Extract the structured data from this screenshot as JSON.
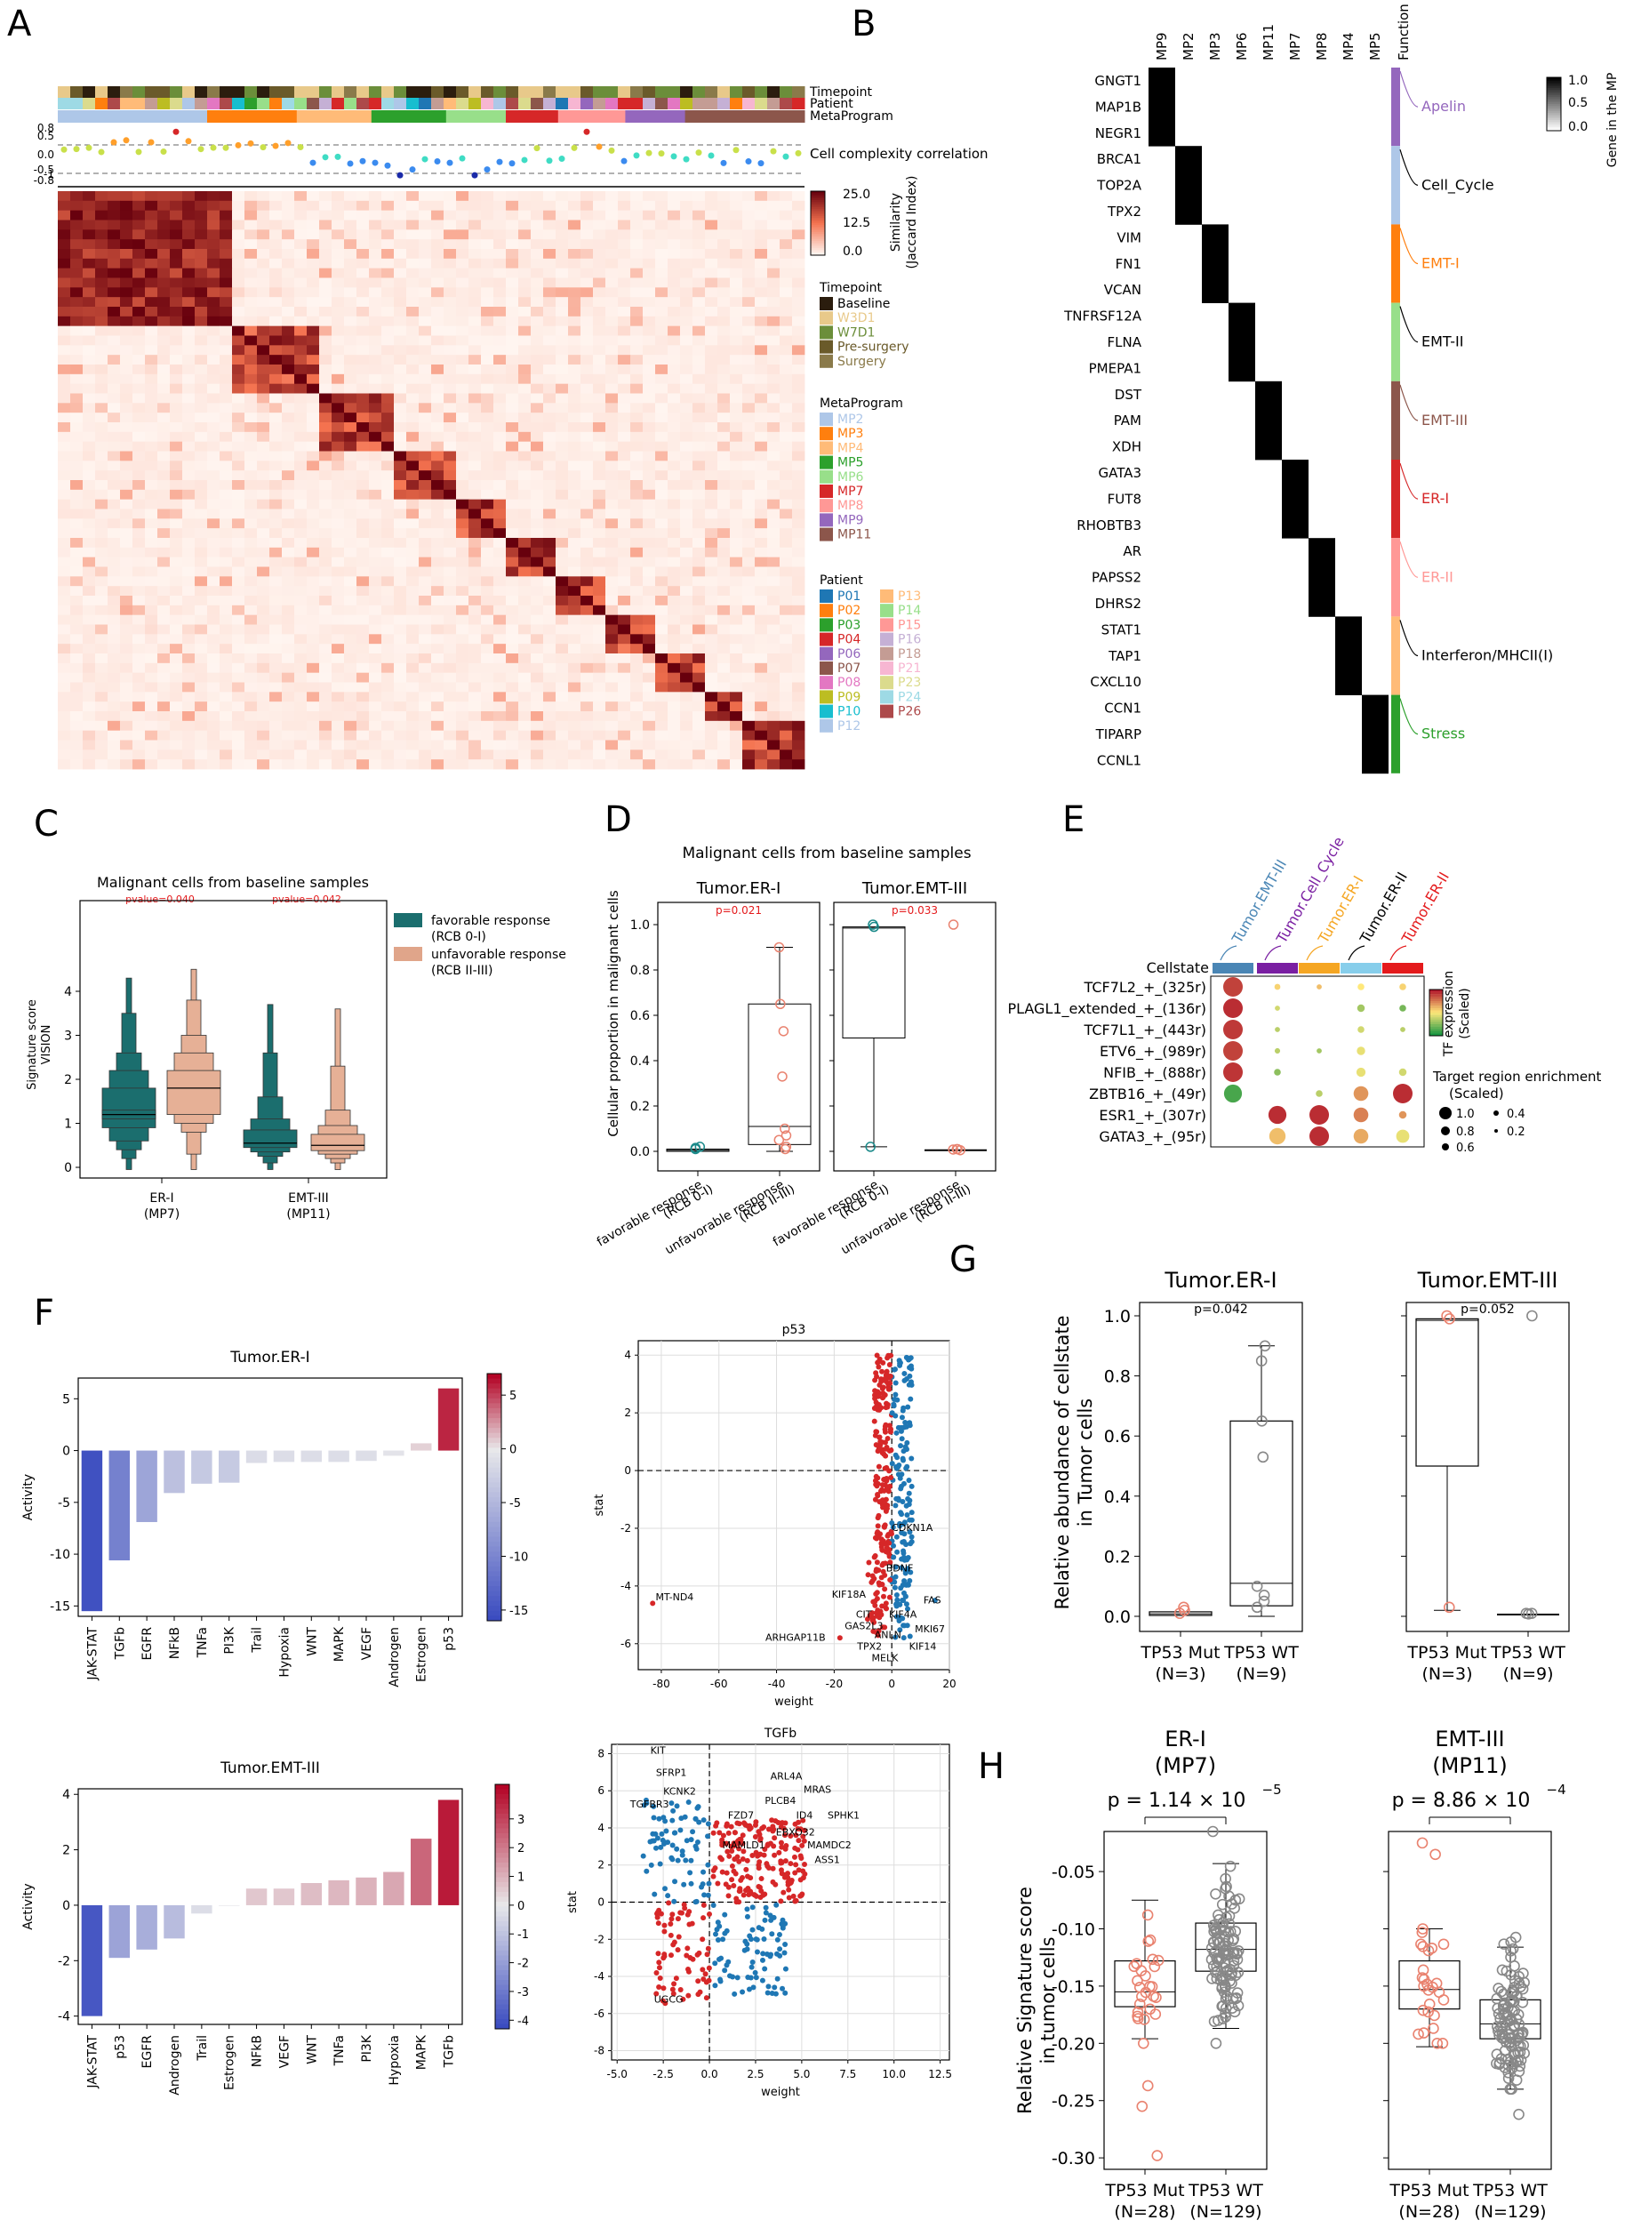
{
  "panel_letters": [
    "A",
    "B",
    "C",
    "D",
    "E",
    "F",
    "G",
    "H"
  ],
  "A": {
    "track_labels": [
      "Timepoint",
      "Patient",
      "MetaProgram"
    ],
    "corr_label": "Cell complexity correlation",
    "corr_ticks": [
      "0.8",
      "0.5",
      "0.0",
      "-0.5",
      "-1",
      "-0.8"
    ],
    "colorbar": {
      "max": "25.0",
      "mid": "12.5",
      "min": "0.0",
      "label": "Similarity (Jaccard Index)"
    },
    "legend_timepoint": {
      "title": "Timepoint",
      "items": [
        {
          "label": "Baseline",
          "color": "#2b1d0e"
        },
        {
          "label": "W3D1",
          "color": "#e8c98a"
        },
        {
          "label": "W7D1",
          "color": "#6b8e3a"
        },
        {
          "label": "Pre-surgery",
          "color": "#6a5a2a"
        },
        {
          "label": "Surgery",
          "color": "#8a7a4a"
        }
      ]
    },
    "legend_mp": {
      "title": "MetaProgram",
      "items": [
        {
          "label": "MP2",
          "color": "#aec7e8"
        },
        {
          "label": "MP3",
          "color": "#ff7f0e"
        },
        {
          "label": "MP4",
          "color": "#ffbb78"
        },
        {
          "label": "MP5",
          "color": "#2ca02c"
        },
        {
          "label": "MP6",
          "color": "#98df8a"
        },
        {
          "label": "MP7",
          "color": "#d62728"
        },
        {
          "label": "MP8",
          "color": "#ff9896"
        },
        {
          "label": "MP9",
          "color": "#9467bd"
        },
        {
          "label": "MP11",
          "color": "#8c564b"
        }
      ]
    },
    "legend_patient": {
      "title": "Patient",
      "col1": [
        {
          "label": "P01",
          "color": "#1f77b4"
        },
        {
          "label": "P02",
          "color": "#ff7f0e"
        },
        {
          "label": "P03",
          "color": "#2ca02c"
        },
        {
          "label": "P04",
          "color": "#d62728"
        },
        {
          "label": "P06",
          "color": "#9467bd"
        },
        {
          "label": "P07",
          "color": "#8c564b"
        },
        {
          "label": "P08",
          "color": "#e377c2"
        },
        {
          "label": "P09",
          "color": "#bcbd22"
        },
        {
          "label": "P10",
          "color": "#17becf"
        },
        {
          "label": "P12",
          "color": "#aec7e8"
        }
      ],
      "col2": [
        {
          "label": "P13",
          "color": "#ffbb78"
        },
        {
          "label": "P14",
          "color": "#98df8a"
        },
        {
          "label": "P15",
          "color": "#ff9896"
        },
        {
          "label": "P16",
          "color": "#c5b0d5"
        },
        {
          "label": "P18",
          "color": "#c49c94"
        },
        {
          "label": "P21",
          "color": "#f7b6d2"
        },
        {
          "label": "P23",
          "color": "#dbdb8d"
        },
        {
          "label": "P24",
          "color": "#9edae5"
        },
        {
          "label": "P26",
          "color": "#ad494a"
        }
      ]
    }
  },
  "B": {
    "columns": [
      "MP9",
      "MP2",
      "MP3",
      "MP6",
      "MP11",
      "MP7",
      "MP8",
      "MP4",
      "MP5"
    ],
    "function_header": "Function",
    "genes": [
      "GNGT1",
      "MAP1B",
      "NEGR1",
      "BRCA1",
      "TOP2A",
      "TPX2",
      "VIM",
      "FN1",
      "VCAN",
      "TNFRSF12A",
      "FLNA",
      "PMEPA1",
      "DST",
      "PAM",
      "XDH",
      "GATA3",
      "FUT8",
      "RHOBTB3",
      "AR",
      "PAPSS2",
      "DHRS2",
      "STAT1",
      "TAP1",
      "CXCL10",
      "CCN1",
      "TIPARP",
      "CCNL1"
    ],
    "functions": [
      {
        "label": "Apelin",
        "color": "#9467bd"
      },
      {
        "label": "Cell_Cycle",
        "color": "#aec7e8"
      },
      {
        "label": "EMT-I",
        "color": "#ff7f0e"
      },
      {
        "label": "EMT-II",
        "color": "#98df8a"
      },
      {
        "label": "EMT-III",
        "color": "#8c564b"
      },
      {
        "label": "ER-I",
        "color": "#d62728"
      },
      {
        "label": "ER-II",
        "color": "#ff9896"
      },
      {
        "label": "Interferon/MHCII(I)",
        "color": "#ffbb78"
      },
      {
        "label": "Stress",
        "color": "#2ca02c"
      }
    ],
    "colorbar": {
      "max": "1.0",
      "mid": "0.5",
      "min": "0.0",
      "label": "Gene in the MP"
    }
  },
  "C": {
    "title": "Malignant cells from baseline samples",
    "ylabel": "Signature score VISION",
    "pvalues": [
      "pvalue=0.040",
      "pvalue=0.042"
    ],
    "groups": [
      "ER-I\n(MP7)",
      "EMT-III\n(MP11)"
    ],
    "legend": [
      {
        "label": "favorable response",
        "sub": "(RCB 0-I)",
        "color": "#1b6e6e"
      },
      {
        "label": "unfavorable response",
        "sub": "(RCB II-III)",
        "color": "#e0a58a"
      }
    ],
    "yticks": [
      "0",
      "1",
      "2",
      "3",
      "4"
    ]
  },
  "D": {
    "title": "Malignant cells from baseline samples",
    "ylabel": "Cellular proportion in malignant cells",
    "panels": [
      {
        "title": "Tumor.ER-I",
        "p": "p=0.021"
      },
      {
        "title": "Tumor.EMT-III",
        "p": "p=0.033"
      }
    ],
    "xlabels": [
      "favorable response\n(RCB 0-I)",
      "unfavorable response\n(RCB II-III)"
    ],
    "yticks": [
      "0.0",
      "0.2",
      "0.4",
      "0.6",
      "0.8",
      "1.0"
    ]
  },
  "E": {
    "cellstate_label": "Cellstate",
    "cellstates": [
      {
        "label": "Tumor.EMT-III",
        "color": "#4a86b5"
      },
      {
        "label": "Tumor.Cell_Cycle",
        "color": "#7a1fa2"
      },
      {
        "label": "Tumor.ER-I",
        "color": "#f5a623"
      },
      {
        "label": "Tumor.ER-II",
        "color": "#000000"
      },
      {
        "label": "Tumor.ER-II",
        "color": "#e41a1c"
      }
    ],
    "cellstate_bar_colors": [
      "#4a86b5",
      "#7a1fa2",
      "#f5a623",
      "#87ceeb",
      "#e41a1c"
    ],
    "rows": [
      "TCF7L2_+_(325r)",
      "PLAGL1_extended_+_(136r)",
      "TCF7L1_+_(443r)",
      "ETV6_+_(989r)",
      "NFIB_+_(888r)",
      "ZBTB16_+_(49r)",
      "ESR1_+_(307r)",
      "GATA3_+_(95r)"
    ],
    "cb_label": "TF expression (Scaled)",
    "size_legend_title": "Target region enrichment (Scaled)",
    "size_legend": [
      "1.0",
      "0.8",
      "0.6",
      "0.4",
      "0.2"
    ]
  },
  "F": {
    "bar1": {
      "title": "Tumor.ER-I",
      "ylabel": "Activity",
      "categories": [
        "JAK-STAT",
        "TGFb",
        "EGFR",
        "NFkB",
        "TNFa",
        "PI3K",
        "Trail",
        "Hypoxia",
        "WNT",
        "MAPK",
        "VEGF",
        "Androgen",
        "Estrogen",
        "p53"
      ],
      "values": [
        -15.5,
        -10.6,
        -6.9,
        -4.1,
        -3.2,
        -3.1,
        -1.2,
        -1.1,
        -1.1,
        -1.1,
        -1.0,
        -0.5,
        0.7,
        6.0
      ],
      "yticks": [
        "5",
        "0",
        "-5",
        "-10",
        "-15"
      ],
      "cbticks": [
        "5",
        "0",
        "-5",
        "-10",
        "-15"
      ]
    },
    "bar2": {
      "title": "Tumor.EMT-III",
      "ylabel": "Activity",
      "categories": [
        "JAK-STAT",
        "p53",
        "EGFR",
        "Androgen",
        "Trail",
        "Estrogen",
        "NFkB",
        "VEGF",
        "WNT",
        "TNFa",
        "PI3K",
        "Hypoxia",
        "MAPK",
        "TGFb"
      ],
      "values": [
        -4.0,
        -1.9,
        -1.6,
        -1.2,
        -0.3,
        0.0,
        0.6,
        0.6,
        0.8,
        0.9,
        1.0,
        1.2,
        2.4,
        3.8
      ],
      "yticks": [
        "4",
        "2",
        "0",
        "-2",
        "-4"
      ],
      "cbticks": [
        "3",
        "2",
        "1",
        "0",
        "-1",
        "-2",
        "-3",
        "-4"
      ]
    },
    "scatter1": {
      "title": "p53",
      "xlabel": "weight",
      "ylabel": "stat",
      "xticks": [
        "-80",
        "-60",
        "-40",
        "-20",
        "0",
        "20"
      ],
      "yticks": [
        "4",
        "2",
        "0",
        "-2",
        "-4",
        "-6"
      ],
      "labels": [
        "MT-ND4",
        "CDKN1A",
        "FAS",
        "MKI67",
        "KIF14",
        "MELK",
        "TPX2",
        "ARHGAP11B",
        "GAS2L3",
        "CIT",
        "KIF18A",
        "KIF4A",
        "ANLN",
        "BDNF"
      ]
    },
    "scatter2": {
      "title": "TGFb",
      "xlabel": "weight",
      "ylabel": "stat",
      "xticks": [
        "-5.0",
        "-2.5",
        "0.0",
        "2.5",
        "5.0",
        "7.5",
        "10.0",
        "12.5"
      ],
      "yticks": [
        "8",
        "6",
        "4",
        "2",
        "0",
        "-2",
        "-4",
        "-6",
        "-8"
      ],
      "labels": [
        "KIT",
        "SFRP1",
        "KCNK2",
        "TGFBR3",
        "ARL4A",
        "MRAS",
        "PLCB4",
        "ID4",
        "SPHK1",
        "FZD7",
        "EBXO32",
        "MAMLD1",
        "MAMDC2",
        "ASS1",
        "UGCG"
      ]
    }
  },
  "G": {
    "ylabel": "Relative abundance of cellstate in Tumor cells",
    "panels": [
      {
        "title": "Tumor.ER-I",
        "p": "p=0.042"
      },
      {
        "title": "Tumor.EMT-III",
        "p": "p=0.052"
      }
    ],
    "xlabels": [
      "TP53 Mut\n(N=3)",
      "TP53 WT\n(N=9)"
    ],
    "yticks": [
      "0.0",
      "0.2",
      "0.4",
      "0.6",
      "0.8",
      "1.0"
    ]
  },
  "H": {
    "ylabel": "Relative Signature score in tumor cells",
    "panels": [
      {
        "title": "ER-I",
        "subtitle": "(MP7)",
        "p": "p = 1.14 × 10",
        "exp": "−5"
      },
      {
        "title": "EMT-III",
        "subtitle": "(MP11)",
        "p": "p = 8.86 × 10",
        "exp": "−4"
      }
    ],
    "xlabels": [
      "TP53 Mut\n(N=28)",
      "TP53 WT\n(N=129)"
    ],
    "yticks": [
      "-0.05",
      "-0.10",
      "-0.15",
      "-0.20",
      "-0.25",
      "-0.30"
    ]
  },
  "chart_data": [
    {
      "type": "bar",
      "title": "Tumor.ER-I",
      "ylabel": "Activity",
      "categories": [
        "JAK-STAT",
        "TGFb",
        "EGFR",
        "NFkB",
        "TNFa",
        "PI3K",
        "Trail",
        "Hypoxia",
        "WNT",
        "MAPK",
        "VEGF",
        "Androgen",
        "Estrogen",
        "p53"
      ],
      "values": [
        -15.5,
        -10.6,
        -6.9,
        -4.1,
        -3.2,
        -3.1,
        -1.2,
        -1.1,
        -1.1,
        -1.1,
        -1.0,
        -0.5,
        0.7,
        6.0
      ],
      "ylim": [
        -16,
        7
      ]
    },
    {
      "type": "bar",
      "title": "Tumor.EMT-III",
      "ylabel": "Activity",
      "categories": [
        "JAK-STAT",
        "p53",
        "EGFR",
        "Androgen",
        "Trail",
        "Estrogen",
        "NFkB",
        "VEGF",
        "WNT",
        "TNFa",
        "PI3K",
        "Hypoxia",
        "MAPK",
        "TGFb"
      ],
      "values": [
        -4.0,
        -1.9,
        -1.6,
        -1.2,
        -0.3,
        0.0,
        0.6,
        0.6,
        0.8,
        0.9,
        1.0,
        1.2,
        2.4,
        3.8
      ],
      "ylim": [
        -4.3,
        4.2
      ]
    }
  ]
}
